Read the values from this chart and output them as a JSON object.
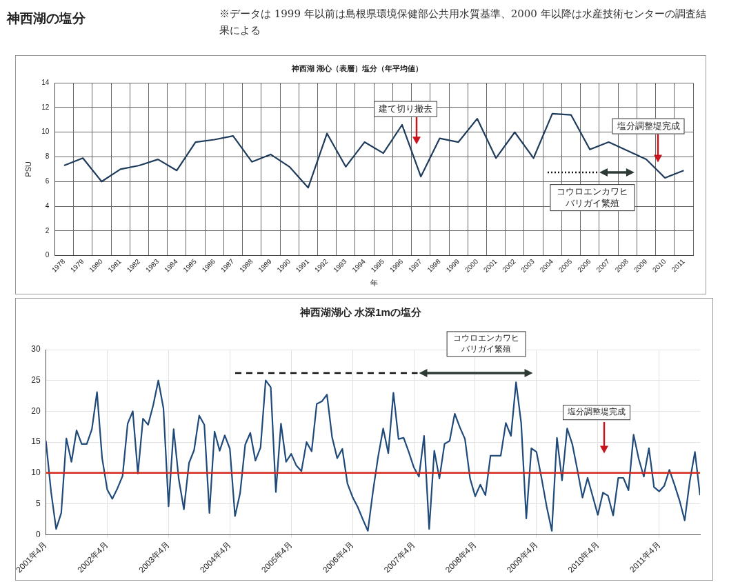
{
  "chart_data": [
    {
      "type": "other",
      "title": "神西湖の塩分",
      "annotations": [
        "※データは 1999 年以前は島根県環境保健部公共用水質基準、2000 年以降は水産技術センターの調査結果による"
      ]
    },
    {
      "type": "line",
      "title": "神西湖 湖心（表層）塩分（年平均値）",
      "xlabel": "年",
      "ylabel": "PSU",
      "categories": [
        "1978",
        "1979",
        "1980",
        "1981",
        "1982",
        "1983",
        "1984",
        "1985",
        "1986",
        "1987",
        "1988",
        "1989",
        "1990",
        "1991",
        "1992",
        "1993",
        "1994",
        "1995",
        "1996",
        "1997",
        "1998",
        "1999",
        "2000",
        "2001",
        "2002",
        "2003",
        "2004",
        "2005",
        "2006",
        "2007",
        "2008",
        "2009",
        "2010",
        "2011"
      ],
      "series": [
        {
          "color": "#1f3b5c",
          "values": [
            7.3,
            7.9,
            6.0,
            7.0,
            7.3,
            7.8,
            6.9,
            9.2,
            9.4,
            9.7,
            7.6,
            8.2,
            7.2,
            5.5,
            9.9,
            7.2,
            9.2,
            8.3,
            10.6,
            6.4,
            9.5,
            9.2,
            11.1,
            7.9,
            10.0,
            7.9,
            11.5,
            11.4,
            8.6,
            9.2,
            8.5,
            7.8,
            6.3,
            6.9
          ]
        }
      ],
      "ylim": [
        0,
        14
      ],
      "yticks": [
        0,
        2,
        4,
        6,
        8,
        10,
        12,
        14
      ],
      "grid": true,
      "annotations": [
        "建て切り撤去",
        "塩分調整堤完成",
        "コウロエンカワヒバリガイ繁殖"
      ]
    },
    {
      "type": "line",
      "title": "神西湖湖心 水深1mの塩分",
      "x": [
        "2001-04",
        "2001-05",
        "2001-06",
        "2001-07",
        "2001-08",
        "2001-09",
        "2001-10",
        "2001-11",
        "2001-12",
        "2002-01",
        "2002-02",
        "2002-03",
        "2002-04",
        "2002-05",
        "2002-06",
        "2002-07",
        "2002-08",
        "2002-09",
        "2002-10",
        "2002-11",
        "2002-12",
        "2003-01",
        "2003-02",
        "2003-03",
        "2003-04",
        "2003-05",
        "2003-06",
        "2003-07",
        "2003-08",
        "2003-09",
        "2003-10",
        "2003-11",
        "2003-12",
        "2004-01",
        "2004-02",
        "2004-03",
        "2004-04",
        "2004-05",
        "2004-06",
        "2004-07",
        "2004-08",
        "2004-09",
        "2004-10",
        "2004-11",
        "2004-12",
        "2005-01",
        "2005-02",
        "2005-03",
        "2005-04",
        "2005-05",
        "2005-06",
        "2005-07",
        "2005-08",
        "2005-09",
        "2005-10",
        "2005-11",
        "2005-12",
        "2006-01",
        "2006-02",
        "2006-03",
        "2006-04",
        "2006-05",
        "2006-06",
        "2006-07",
        "2006-08",
        "2006-09",
        "2006-10",
        "2006-11",
        "2006-12",
        "2007-01",
        "2007-02",
        "2007-03",
        "2007-04",
        "2007-05",
        "2007-06",
        "2007-07",
        "2007-08",
        "2007-09",
        "2007-10",
        "2007-11",
        "2007-12",
        "2008-01",
        "2008-02",
        "2008-03",
        "2008-04",
        "2008-05",
        "2008-06",
        "2008-07",
        "2008-08",
        "2008-09",
        "2008-10",
        "2008-11",
        "2008-12",
        "2009-01",
        "2009-02",
        "2009-03",
        "2009-04",
        "2009-05",
        "2009-06",
        "2009-07",
        "2009-08",
        "2009-09",
        "2009-10",
        "2009-11",
        "2009-12",
        "2010-01",
        "2010-02",
        "2010-03",
        "2010-04",
        "2010-05",
        "2010-06",
        "2010-07",
        "2010-08",
        "2010-09",
        "2010-10",
        "2010-11",
        "2010-12",
        "2011-01",
        "2011-02",
        "2011-03",
        "2011-04",
        "2011-05",
        "2011-06",
        "2011-07",
        "2011-08",
        "2011-09",
        "2011-10",
        "2011-11",
        "2011-12"
      ],
      "series": [
        {
          "color": "#1f4a7a",
          "values": [
            15.2,
            7.0,
            0.9,
            3.5,
            15.6,
            11.8,
            16.9,
            14.7,
            14.7,
            17.1,
            23.1,
            12.4,
            7.3,
            5.8,
            7.5,
            9.5,
            18.0,
            20.0,
            9.9,
            18.8,
            17.8,
            21.0,
            25.0,
            20.5,
            4.6,
            17.1,
            9.0,
            4.1,
            11.6,
            13.7,
            19.3,
            17.8,
            3.5,
            16.7,
            13.6,
            16.1,
            13.9,
            3.0,
            6.7,
            14.6,
            16.5,
            12.0,
            14.1,
            25.0,
            23.9,
            6.9,
            18.0,
            11.8,
            13.1,
            11.2,
            10.3,
            15.0,
            13.5,
            21.2,
            21.6,
            22.7,
            15.8,
            12.4,
            13.9,
            8.3,
            6.1,
            4.5,
            2.5,
            0.6,
            7.0,
            12.6,
            17.2,
            13.2,
            23.0,
            15.5,
            15.7,
            13.4,
            10.9,
            9.4,
            16.0,
            0.9,
            13.6,
            9.1,
            14.7,
            15.2,
            19.6,
            17.4,
            15.5,
            9.1,
            6.2,
            8.1,
            6.4,
            12.8,
            12.8,
            12.8,
            18.1,
            16.0,
            24.7,
            18.1,
            2.6,
            14.0,
            13.4,
            9.1,
            4.5,
            0.6,
            15.7,
            8.8,
            17.2,
            14.7,
            10.5,
            6.0,
            9.2,
            6.2,
            3.2,
            6.8,
            6.3,
            3.1,
            9.2,
            9.2,
            7.2,
            16.2,
            12.3,
            9.4,
            14.0,
            7.7,
            7.0,
            7.9,
            10.5,
            8.1,
            5.5,
            2.3,
            8.7,
            13.4,
            6.4
          ]
        }
      ],
      "xlim": [
        "2001-04",
        "2011-12"
      ],
      "xticks": [
        {
          "value": "2001-04",
          "label": "2001年4月"
        },
        {
          "value": "2002-04",
          "label": "2002年4月"
        },
        {
          "value": "2003-04",
          "label": "2003年4月"
        },
        {
          "value": "2004-04",
          "label": "2004年4月"
        },
        {
          "value": "2005-04",
          "label": "2005年4月"
        },
        {
          "value": "2006-04",
          "label": "2006年4月"
        },
        {
          "value": "2007-04",
          "label": "2007年4月"
        },
        {
          "value": "2008-04",
          "label": "2008年4月"
        },
        {
          "value": "2009-04",
          "label": "2009年4月"
        },
        {
          "value": "2010-04",
          "label": "2010年4月"
        },
        {
          "value": "2011-04",
          "label": "2011年4月"
        }
      ],
      "ylim": [
        0,
        30
      ],
      "yticks": [
        0,
        5,
        10,
        15,
        20,
        25,
        30
      ],
      "grid": true,
      "ref_lines": [
        {
          "axis": "y",
          "value": 10,
          "color": "#d42a1c"
        }
      ],
      "annotations": [
        "コウロエンカワヒバリガイ繁殖",
        "塩分調整堤完成"
      ]
    }
  ]
}
